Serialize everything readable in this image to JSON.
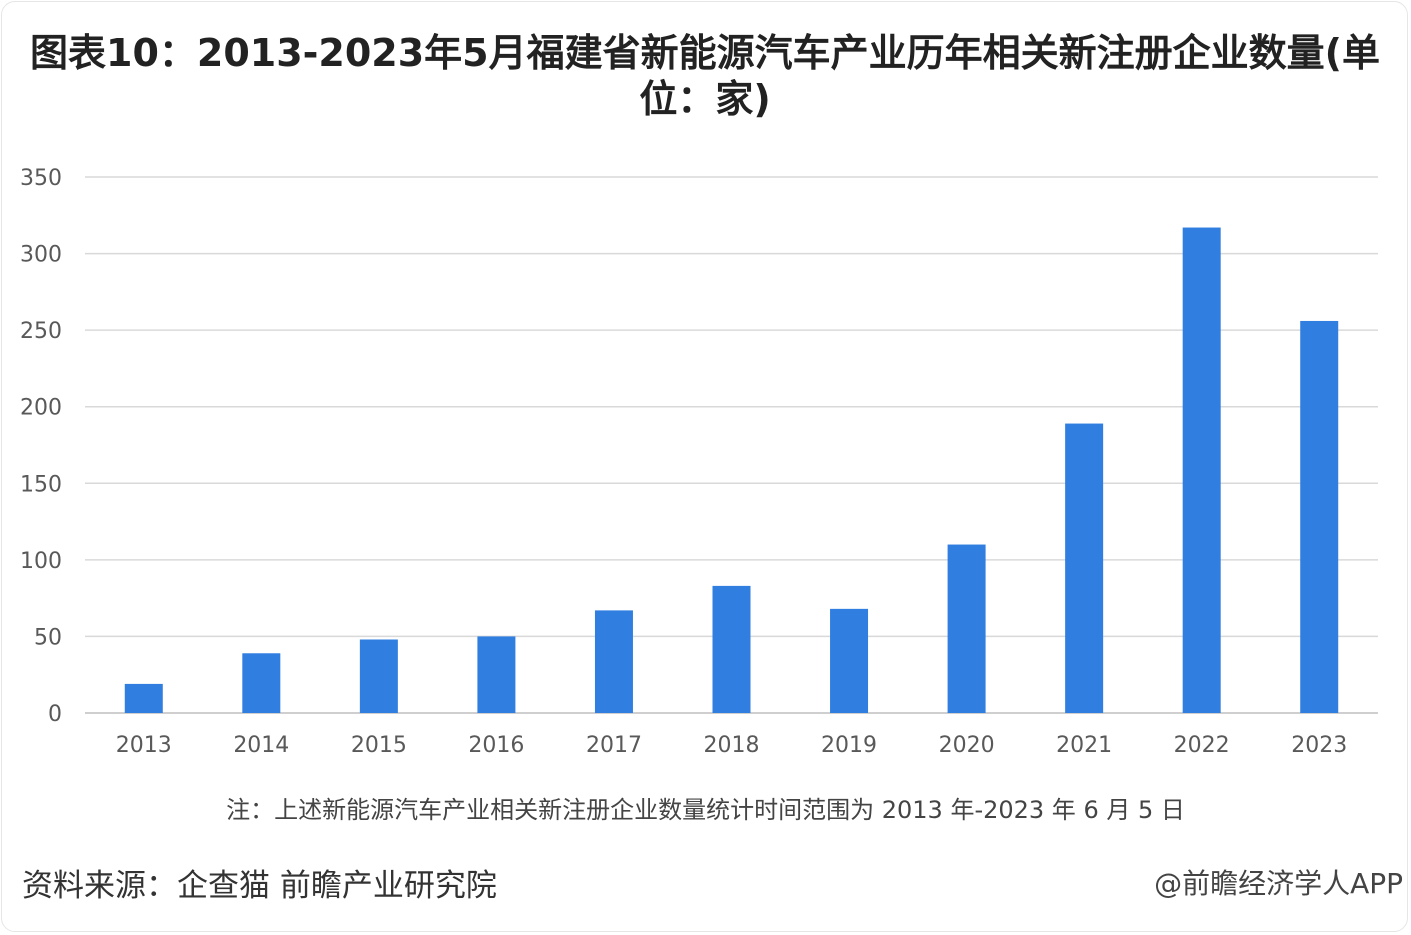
{
  "title": "图表10：2013-2023年5月福建省新能源汽车产业历年相关新注册企业数量(单位：家)",
  "note": "注：上述新能源汽车产业相关新注册企业数量统计时间范围为 2013 年-2023 年 6 月 5 日",
  "source": "资料来源：企查猫 前瞻产业研究院",
  "attribution": "@前瞻经济学人APP",
  "colors": {
    "bar": "#2f7ee0",
    "grid": "#d9d9d9"
  },
  "chart_data": {
    "type": "bar",
    "categories": [
      "2013",
      "2014",
      "2015",
      "2016",
      "2017",
      "2018",
      "2019",
      "2020",
      "2021",
      "2022",
      "2023"
    ],
    "values": [
      19,
      39,
      48,
      50,
      67,
      83,
      68,
      110,
      189,
      317,
      256
    ],
    "ylim": [
      0,
      350
    ],
    "yticks": [
      0,
      50,
      100,
      150,
      200,
      250,
      300,
      350
    ],
    "grid": true,
    "legend": "none"
  }
}
